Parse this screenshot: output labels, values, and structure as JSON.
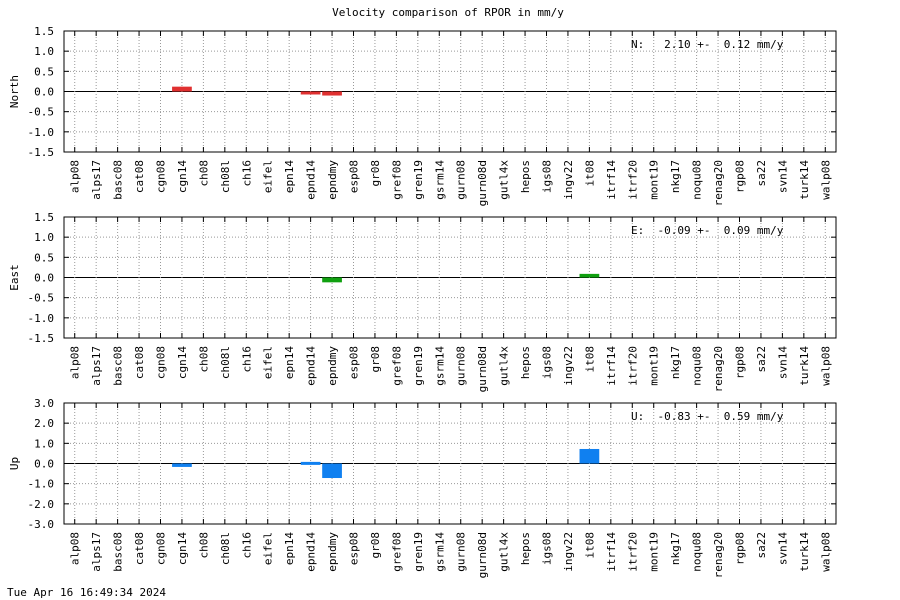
{
  "title": "Velocity comparison of RPOR in mm/y",
  "footer": "Tue Apr 16 16:49:34 2024",
  "chart_data": {
    "type": "bar",
    "title": "Velocity comparison of RPOR in mm/y",
    "categories": [
      "alp08",
      "alps17",
      "basc08",
      "cat08",
      "cgn08",
      "cgn14",
      "ch08",
      "ch08l",
      "ch16",
      "eifel",
      "epn14",
      "epnd14",
      "epndmy",
      "esp08",
      "gr08",
      "gref08",
      "gren19",
      "gsrm14",
      "gurn08",
      "gurn08d",
      "gutl4x",
      "hepos",
      "igs08",
      "ingv22",
      "it08",
      "itrf14",
      "itrf20",
      "mont19",
      "nkg17",
      "noqu08",
      "renag20",
      "rgp08",
      "sa22",
      "svn14",
      "turk14",
      "walp08"
    ],
    "panels": [
      {
        "component": "North",
        "ylabel": "North",
        "ylim": [
          -1.5,
          1.5
        ],
        "yticks": [
          1.5,
          1.0,
          0.5,
          0.0,
          -0.5,
          -1.0,
          -1.5
        ],
        "ytick_labels": [
          "1.5",
          "1.0",
          "0.5",
          "0.0",
          "-0.5",
          "-1.0",
          "-1.5"
        ],
        "annotation": "N:   2.10 +-  0.12 mm/y",
        "color": "#e03030",
        "values": {
          "cgn14": 0.12,
          "epnd14": -0.07,
          "epndmy": -0.1
        },
        "grid": true
      },
      {
        "component": "East",
        "ylabel": "East",
        "ylim": [
          -1.5,
          1.5
        ],
        "yticks": [
          1.5,
          1.0,
          0.5,
          0.0,
          -0.5,
          -1.0,
          -1.5
        ],
        "ytick_labels": [
          "1.5",
          "1.0",
          "0.5",
          "0.0",
          "-0.5",
          "-1.0",
          "-1.5"
        ],
        "annotation": "E:  -0.09 +-  0.09 mm/y",
        "color": "#10a010",
        "values": {
          "epndmy": -0.12,
          "it08": 0.09
        },
        "grid": true
      },
      {
        "component": "Up",
        "ylabel": "Up",
        "ylim": [
          -3.0,
          3.0
        ],
        "yticks": [
          3.0,
          2.0,
          1.0,
          0.0,
          -1.0,
          -2.0,
          -3.0
        ],
        "ytick_labels": [
          "3.0",
          "2.0",
          "1.0",
          "0.0",
          "-1.0",
          "-2.0",
          "-3.0"
        ],
        "annotation": "U:  -0.83 +-  0.59 mm/y",
        "color": "#1080f0",
        "values": {
          "cgn14": -0.17,
          "epnd14": 0.08,
          "epndmy": -0.72,
          "it08": 0.72
        },
        "grid": true
      }
    ]
  }
}
